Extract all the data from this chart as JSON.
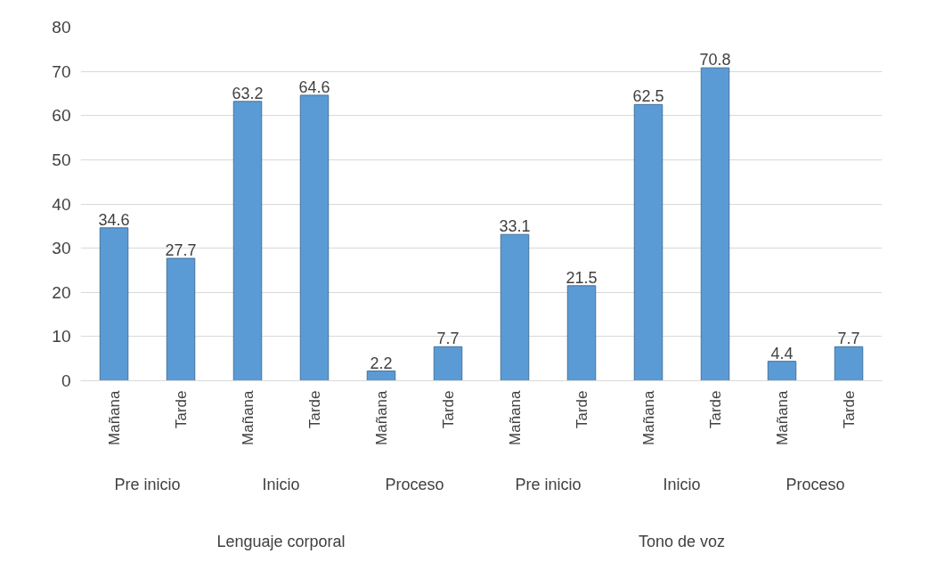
{
  "chart_data": {
    "type": "bar",
    "categories": [
      "Mañana",
      "Tarde",
      "Mañana",
      "Tarde",
      "Mañana",
      "Tarde",
      "Mañana",
      "Tarde",
      "Mañana",
      "Tarde",
      "Mañana",
      "Tarde"
    ],
    "values": [
      34.6,
      27.7,
      63.2,
      64.6,
      2.2,
      7.7,
      33.1,
      21.5,
      62.5,
      70.8,
      4.4,
      7.7
    ],
    "color": "#5b9bd5",
    "ylim": [
      0,
      80
    ],
    "yticks": [
      0,
      10,
      20,
      30,
      40,
      50,
      60,
      70,
      80
    ],
    "grid": "y",
    "data_labels": true,
    "annotations": [
      "Pre inicio",
      "Inicio",
      "Proceso",
      "Pre inicio",
      "Inicio",
      "Proceso",
      "Lenguaje corporal",
      "Tono de voz"
    ]
  }
}
